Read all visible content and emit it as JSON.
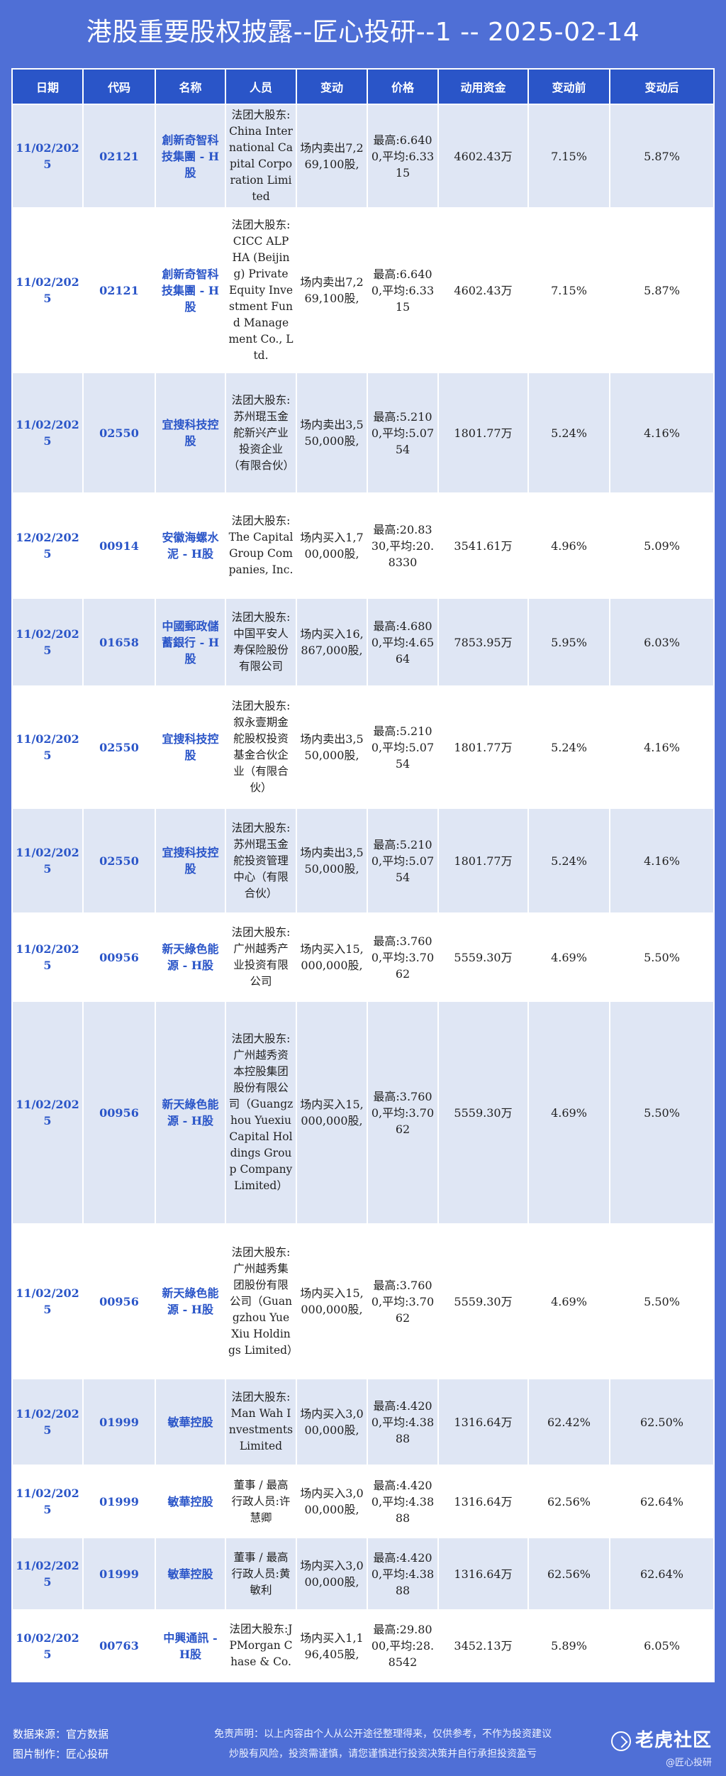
{
  "title": "港股重要股权披露--匠心投研--1 -- 2025-02-14",
  "columns": [
    "日期",
    "代码",
    "名称",
    "人员",
    "变动",
    "价格",
    "动用资金",
    "变动前",
    "变动后"
  ],
  "rows": [
    {
      "date": "11/02/2025",
      "code": "02121",
      "name": "創新奇智科技集團 - H股",
      "person": "法团大股东:China International Capital Corporation Limited",
      "change": "场内卖出7,269,100股,",
      "price": "最高:6.6400,平均:6.3315",
      "funds": "4602.43万",
      "before": "7.15%",
      "after": "5.87%"
    },
    {
      "date": "11/02/2025",
      "code": "02121",
      "name": "創新奇智科技集團 - H股",
      "person": "法团大股东:CICC ALPHA (Beijing) Private Equity Investment Fund Management Co., Ltd.",
      "change": "场内卖出7,269,100股,",
      "price": "最高:6.6400,平均:6.3315",
      "funds": "4602.43万",
      "before": "7.15%",
      "after": "5.87%"
    },
    {
      "date": "11/02/2025",
      "code": "02550",
      "name": "宜搜科技控股",
      "person": "法团大股东:苏州琨玉金舵新兴产业投资企业（有限合伙）",
      "change": "场内卖出3,550,000股,",
      "price": "最高:5.2100,平均:5.0754",
      "funds": "1801.77万",
      "before": "5.24%",
      "after": "4.16%"
    },
    {
      "date": "12/02/2025",
      "code": "00914",
      "name": "安徽海螺水泥 - H股",
      "person": "法团大股东:The Capital Group Companies, Inc.",
      "change": "场内买入1,700,000股,",
      "price": "最高:20.8330,平均:20.8330",
      "funds": "3541.61万",
      "before": "4.96%",
      "after": "5.09%"
    },
    {
      "date": "11/02/2025",
      "code": "01658",
      "name": "中國郵政儲蓄銀行 - H股",
      "person": "法团大股东:中国平安人寿保险股份有限公司",
      "change": "场内买入16,867,000股,",
      "price": "最高:4.6800,平均:4.6564",
      "funds": "7853.95万",
      "before": "5.95%",
      "after": "6.03%"
    },
    {
      "date": "11/02/2025",
      "code": "02550",
      "name": "宜搜科技控股",
      "person": "法团大股东:叙永壹期金舵股权投资基金合伙企业（有限合伙）",
      "change": "场内卖出3,550,000股,",
      "price": "最高:5.2100,平均:5.0754",
      "funds": "1801.77万",
      "before": "5.24%",
      "after": "4.16%"
    },
    {
      "date": "11/02/2025",
      "code": "02550",
      "name": "宜搜科技控股",
      "person": "法团大股东:苏州琨玉金舵投资管理中心（有限合伙）",
      "change": "场内卖出3,550,000股,",
      "price": "最高:5.2100,平均:5.0754",
      "funds": "1801.77万",
      "before": "5.24%",
      "after": "4.16%"
    },
    {
      "date": "11/02/2025",
      "code": "00956",
      "name": "新天綠色能源 - H股",
      "person": "法团大股东:广州越秀产业投资有限公司",
      "change": "场内买入15,000,000股,",
      "price": "最高:3.7600,平均:3.7062",
      "funds": "5559.30万",
      "before": "4.69%",
      "after": "5.50%"
    },
    {
      "date": "11/02/2025",
      "code": "00956",
      "name": "新天綠色能源 - H股",
      "person": "法团大股东:广州越秀资本控股集团股份有限公司（Guangzhou Yuexiu Capital Holdings Group Company Limited）",
      "change": "场内买入15,000,000股,",
      "price": "最高:3.7600,平均:3.7062",
      "funds": "5559.30万",
      "before": "4.69%",
      "after": "5.50%"
    },
    {
      "date": "11/02/2025",
      "code": "00956",
      "name": "新天綠色能源 - H股",
      "person": "法团大股东:广州越秀集团股份有限公司（Guangzhou Yue Xiu Holdings Limited）",
      "change": "场内买入15,000,000股,",
      "price": "最高:3.7600,平均:3.7062",
      "funds": "5559.30万",
      "before": "4.69%",
      "after": "5.50%"
    },
    {
      "date": "11/02/2025",
      "code": "01999",
      "name": "敏華控股",
      "person": "法团大股东:Man Wah Investments Limited",
      "change": "场内买入3,000,000股,",
      "price": "最高:4.4200,平均:4.3888",
      "funds": "1316.64万",
      "before": "62.42%",
      "after": "62.50%"
    },
    {
      "date": "11/02/2025",
      "code": "01999",
      "name": "敏華控股",
      "person": "董事 / 最高行政人员:许慧卿",
      "change": "场内买入3,000,000股,",
      "price": "最高:4.4200,平均:4.3888",
      "funds": "1316.64万",
      "before": "62.56%",
      "after": "62.64%"
    },
    {
      "date": "11/02/2025",
      "code": "01999",
      "name": "敏華控股",
      "person": "董事 / 最高行政人员:黄敏利",
      "change": "场内买入3,000,000股,",
      "price": "最高:4.4200,平均:4.3888",
      "funds": "1316.64万",
      "before": "62.56%",
      "after": "62.64%"
    },
    {
      "date": "10/02/2025",
      "code": "00763",
      "name": "中興通訊 - H股",
      "person": "法团大股东:JPMorgan Chase & Co.",
      "change": "场内买入1,196,405股,",
      "price": "最高:29.8000,平均:28.8542",
      "funds": "3452.13万",
      "before": "5.89%",
      "after": "6.05%"
    }
  ],
  "footer": {
    "source": "数据来源：官方数据",
    "maker": "图片制作：匠心投研",
    "disclaimer_1": "免责声明：以上内容由个人从公开途径整理得来，仅供参考，不作为投资建议",
    "disclaimer_2": "炒股有风险，投资需谨慎，请您谨慎进行投资决策并自行承担投资盈亏",
    "logo_text": "老虎社区",
    "logo_sub": "@匠心投研"
  }
}
